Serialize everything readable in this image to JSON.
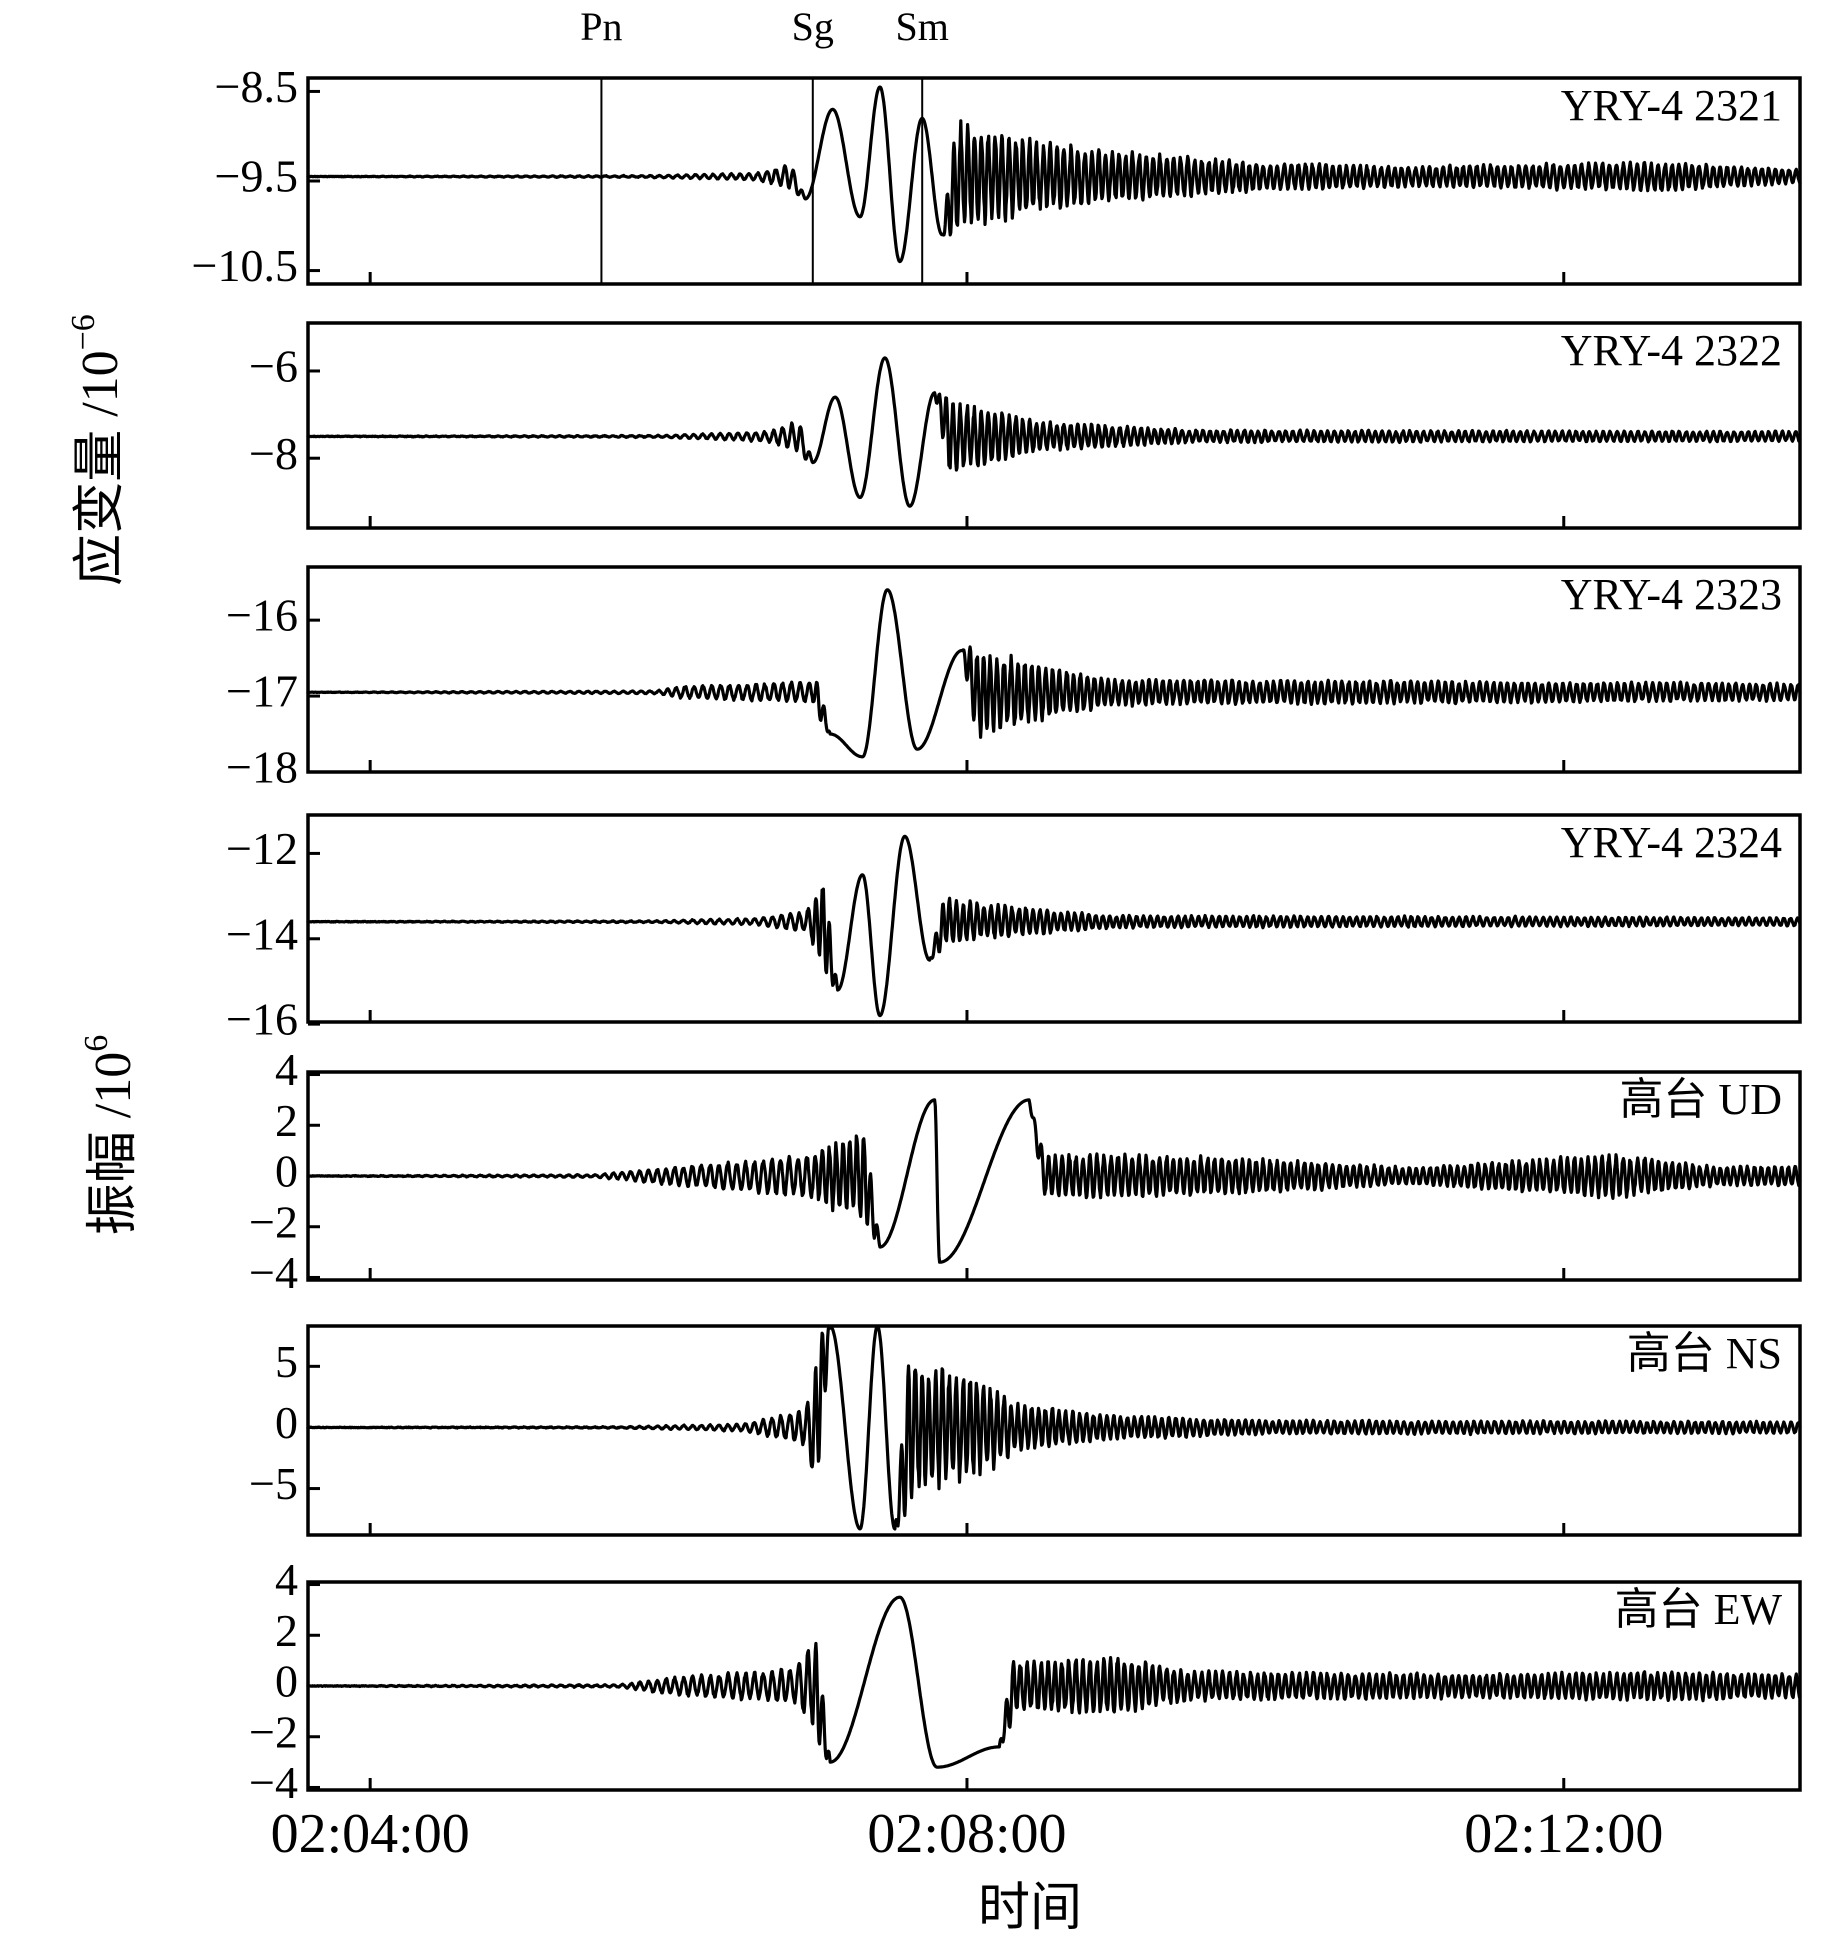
{
  "chart_data": {
    "type": "line",
    "xlabel": "时间",
    "x_ticks": [
      "02:04:00",
      "02:08:00",
      "02:12:00"
    ],
    "xlim": [
      "02:03:35",
      "02:13:35"
    ],
    "phases": [
      {
        "label": "Pn",
        "time": "02:05:33"
      },
      {
        "label": "Sg",
        "time": "02:06:58"
      },
      {
        "label": "Sm",
        "time": "02:07:42"
      }
    ],
    "groups": [
      {
        "ylabel": "应变量 /10",
        "ylabel_sup": "−6",
        "panels": [
          0,
          1,
          2,
          3
        ]
      },
      {
        "ylabel": "振幅 /10",
        "ylabel_sup": "6",
        "panels": [
          4,
          5,
          6
        ]
      }
    ],
    "panels": [
      {
        "label": "YRY-4 2321",
        "ylim": [
          -10.65,
          -8.35
        ],
        "yticks": [
          -8.5,
          -9.5,
          -10.5
        ],
        "ytick_labels": [
          "−8.5",
          "−9.5",
          "−10.5"
        ],
        "baseline": -9.45,
        "noise": 0.008,
        "envelope": [
          [
            "02:03:35",
            0
          ],
          [
            "02:05:50",
            0.01
          ],
          [
            "02:06:35",
            0.04
          ],
          [
            "02:06:58",
            0.2
          ],
          [
            "02:07:05",
            0.85
          ],
          [
            "02:07:20",
            1.05
          ],
          [
            "02:07:30",
            1.0
          ],
          [
            "02:07:45",
            0.75
          ],
          [
            "02:08:05",
            0.55
          ],
          [
            "02:08:30",
            0.4
          ],
          [
            "02:09:00",
            0.3
          ],
          [
            "02:10:00",
            0.16
          ],
          [
            "02:11:00",
            0.12
          ],
          [
            "02:12:40",
            0.17
          ],
          [
            "02:13:35",
            0.08
          ]
        ],
        "shown_values": [
          {
            "t": "02:06:55",
            "y": -9.7
          },
          {
            "t": "02:07:06",
            "y": -8.7
          },
          {
            "t": "02:07:17",
            "y": -9.9
          },
          {
            "t": "02:07:25",
            "y": -8.45
          },
          {
            "t": "02:07:33",
            "y": -10.4
          },
          {
            "t": "02:07:42",
            "y": -8.8
          },
          {
            "t": "02:07:50",
            "y": -10.1
          }
        ]
      },
      {
        "label": "YRY-4 2322",
        "ylim": [
          -9.6,
          -4.9
        ],
        "yticks": [
          -6,
          -8
        ],
        "ytick_labels": [
          "−6",
          "−8"
        ],
        "baseline": -7.5,
        "noise": 0.01,
        "envelope": [
          [
            "02:03:35",
            0
          ],
          [
            "02:05:55",
            0.02
          ],
          [
            "02:06:40",
            0.12
          ],
          [
            "02:06:58",
            0.5
          ],
          [
            "02:07:10",
            1.3
          ],
          [
            "02:07:25",
            1.35
          ],
          [
            "02:07:35",
            1.15
          ],
          [
            "02:07:50",
            0.9
          ],
          [
            "02:08:10",
            0.65
          ],
          [
            "02:08:30",
            0.35
          ],
          [
            "02:09:30",
            0.15
          ],
          [
            "02:13:35",
            0.12
          ]
        ],
        "shown_values": [
          {
            "t": "02:06:58",
            "y": -8.1
          },
          {
            "t": "02:07:07",
            "y": -6.6
          },
          {
            "t": "02:07:17",
            "y": -8.9
          },
          {
            "t": "02:07:27",
            "y": -5.7
          },
          {
            "t": "02:07:37",
            "y": -9.1
          },
          {
            "t": "02:07:47",
            "y": -6.5
          }
        ]
      },
      {
        "label": "YRY-4 2323",
        "ylim": [
          -18.0,
          -15.3
        ],
        "yticks": [
          -16,
          -17,
          -18
        ],
        "ytick_labels": [
          "−16",
          "−17",
          "−18"
        ],
        "baseline": -16.95,
        "noise": 0.006,
        "envelope": [
          [
            "02:03:35",
            0
          ],
          [
            "02:05:55",
            0.02
          ],
          [
            "02:06:05",
            0.08
          ],
          [
            "02:06:58",
            0.15
          ],
          [
            "02:07:08",
            0.55
          ],
          [
            "02:07:30",
            1.0
          ],
          [
            "02:07:40",
            0.85
          ],
          [
            "02:08:00",
            0.65
          ],
          [
            "02:08:20",
            0.45
          ],
          [
            "02:09:00",
            0.18
          ],
          [
            "02:13:35",
            0.12
          ]
        ],
        "shown_values": [
          {
            "t": "02:07:05",
            "y": -17.5
          },
          {
            "t": "02:07:18",
            "y": -17.8
          },
          {
            "t": "02:07:28",
            "y": -15.6
          },
          {
            "t": "02:07:40",
            "y": -17.7
          },
          {
            "t": "02:07:58",
            "y": -16.4
          }
        ]
      },
      {
        "label": "YRY-4 2324",
        "ylim": [
          -15.95,
          -11.1
        ],
        "yticks": [
          -12,
          -14,
          -16
        ],
        "ytick_labels": [
          "−12",
          "−14",
          "−16"
        ],
        "baseline": -13.6,
        "noise": 0.01,
        "envelope": [
          [
            "02:03:35",
            0
          ],
          [
            "02:05:55",
            0.02
          ],
          [
            "02:06:35",
            0.08
          ],
          [
            "02:06:55",
            0.25
          ],
          [
            "02:07:05",
            1.25
          ],
          [
            "02:07:25",
            1.35
          ],
          [
            "02:07:35",
            1.0
          ],
          [
            "02:07:45",
            0.65
          ],
          [
            "02:08:05",
            0.45
          ],
          [
            "02:08:30",
            0.3
          ],
          [
            "02:09:00",
            0.15
          ],
          [
            "02:13:35",
            0.1
          ]
        ],
        "shown_values": [
          {
            "t": "02:07:08",
            "y": -15.2
          },
          {
            "t": "02:07:18",
            "y": -12.5
          },
          {
            "t": "02:07:25",
            "y": -15.8
          },
          {
            "t": "02:07:35",
            "y": -11.6
          },
          {
            "t": "02:07:45",
            "y": -14.5
          }
        ]
      },
      {
        "label": "高台 UD",
        "ylim": [
          -4.1,
          4.1
        ],
        "yticks": [
          4,
          2,
          0,
          -2,
          -4
        ],
        "ytick_labels": [
          "4",
          "2",
          "0",
          "−2",
          "−4"
        ],
        "baseline": 0,
        "noise": 0.01,
        "envelope": [
          [
            "02:03:35",
            0
          ],
          [
            "02:05:30",
            0.05
          ],
          [
            "02:06:00",
            0.35
          ],
          [
            "02:06:58",
            0.9
          ],
          [
            "02:07:10",
            1.6
          ],
          [
            "02:07:35",
            2.1
          ],
          [
            "02:07:50",
            2.6
          ],
          [
            "02:08:05",
            2.6
          ],
          [
            "02:08:20",
            0.8
          ],
          [
            "02:09:00",
            0.9
          ],
          [
            "02:10:00",
            0.7
          ],
          [
            "02:11:00",
            0.35
          ],
          [
            "02:12:20",
            0.9
          ],
          [
            "02:13:00",
            0.4
          ],
          [
            "02:13:35",
            0.4
          ]
        ],
        "shown_values": [
          {
            "t": "02:07:25",
            "y": -2.8
          },
          {
            "t": "02:07:47",
            "y": 3.0
          },
          {
            "t": "02:07:49",
            "y": -3.4
          },
          {
            "t": "02:08:25",
            "y": 3.0
          }
        ]
      },
      {
        "label": "高台 NS",
        "ylim": [
          -8.8,
          8.3
        ],
        "yticks": [
          5,
          0,
          -5
        ],
        "ytick_labels": [
          "5",
          "0",
          "−5"
        ],
        "baseline": 0,
        "noise": 0.01,
        "envelope": [
          [
            "02:03:35",
            0
          ],
          [
            "02:05:40",
            0.05
          ],
          [
            "02:06:30",
            0.3
          ],
          [
            "02:06:55",
            1.5
          ],
          [
            "02:07:03",
            8.3
          ],
          [
            "02:07:28",
            8.3
          ],
          [
            "02:07:40",
            5.5
          ],
          [
            "02:08:05",
            4.2
          ],
          [
            "02:08:20",
            2.0
          ],
          [
            "02:09:00",
            1.0
          ],
          [
            "02:10:00",
            0.6
          ],
          [
            "02:13:35",
            0.5
          ]
        ],
        "shown_values": [
          {
            "t": "02:07:05",
            "y": 8.3
          },
          {
            "t": "02:07:17",
            "y": -8.3
          },
          {
            "t": "02:07:24",
            "y": 8.3
          },
          {
            "t": "02:07:31",
            "y": -8.3
          }
        ]
      },
      {
        "label": "高台 EW",
        "ylim": [
          -4.1,
          4.1
        ],
        "yticks": [
          4,
          2,
          0,
          -2,
          -4
        ],
        "ytick_labels": [
          "4",
          "2",
          "0",
          "−2",
          "−4"
        ],
        "baseline": 0,
        "noise": 0.01,
        "envelope": [
          [
            "02:03:35",
            0
          ],
          [
            "02:05:40",
            0.05
          ],
          [
            "02:06:00",
            0.35
          ],
          [
            "02:06:50",
            0.7
          ],
          [
            "02:07:05",
            2.6
          ],
          [
            "02:07:40",
            3.3
          ],
          [
            "02:08:05",
            2.6
          ],
          [
            "02:08:20",
            1.0
          ],
          [
            "02:09:00",
            1.2
          ],
          [
            "02:09:30",
            0.6
          ],
          [
            "02:11:30",
            0.5
          ],
          [
            "02:12:40",
            0.6
          ],
          [
            "02:13:35",
            0.5
          ]
        ],
        "shown_values": [
          {
            "t": "02:07:05",
            "y": -3.0
          },
          {
            "t": "02:07:33",
            "y": 3.5
          },
          {
            "t": "02:07:48",
            "y": -3.2
          },
          {
            "t": "02:08:13",
            "y": -2.4
          }
        ]
      }
    ]
  }
}
